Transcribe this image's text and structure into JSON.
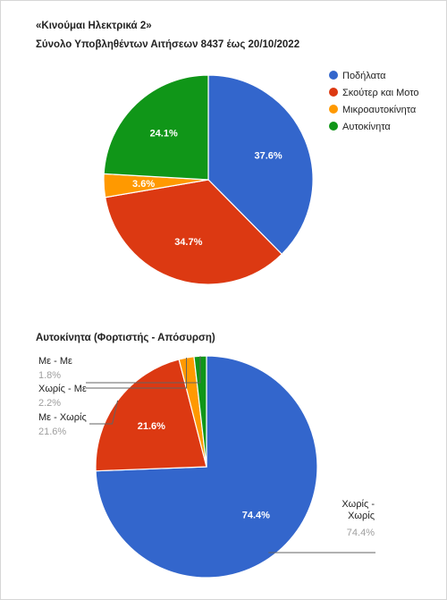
{
  "chart_data": [
    {
      "type": "pie",
      "title": "«Κινούμαι Ηλεκτρικά 2»",
      "subtitle": "Σύνολο Υποβληθέντων Αιτήσεων 8437 έως 20/10/2022",
      "categories": [
        "Ποδήλατα",
        "Σκούτερ και Μοτο",
        "Μικροαυτοκίνητα",
        "Αυτοκίνητα"
      ],
      "values": [
        37.6,
        34.7,
        3.6,
        24.1
      ],
      "labels": [
        "37.6%",
        "34.7%",
        "3.6%",
        "24.1%"
      ],
      "colors": [
        "#3366cc",
        "#dc3912",
        "#ff9900",
        "#109618"
      ],
      "legend": "right"
    },
    {
      "type": "pie",
      "title": "Αυτοκίνητα (Φορτιστής - Απόσυρση)",
      "categories": [
        "Χωρίς - Χωρίς",
        "Με - Χωρίς",
        "Χωρίς - Με",
        "Με - Με"
      ],
      "values": [
        74.4,
        21.6,
        2.2,
        1.8
      ],
      "labels": [
        "74.4%",
        "21.6%",
        "2.2%",
        "1.8%"
      ],
      "slice_labels": [
        "74.4%",
        "21.6%",
        "",
        ""
      ],
      "callout_names": [
        [
          "Χωρίς -",
          "Χωρίς"
        ],
        [
          "Με - Χωρίς"
        ],
        [
          "Χωρίς - Με"
        ],
        [
          "Με - Με"
        ]
      ],
      "colors": [
        "#3366cc",
        "#dc3912",
        "#ff9900",
        "#109618"
      ],
      "legend": "labeled"
    }
  ]
}
